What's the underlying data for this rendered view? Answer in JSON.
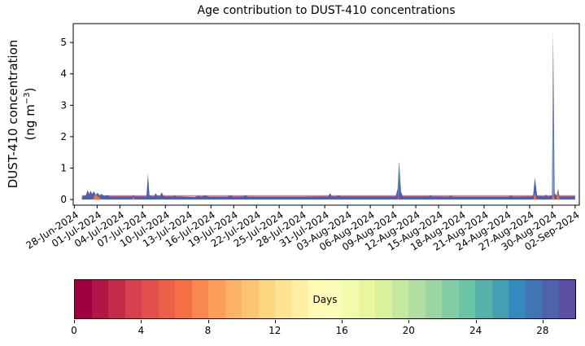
{
  "chart_data": {
    "type": "area",
    "title": "Age contribution to DUST-410 concentrations",
    "ylabel_line1": "DUST-410 concentration",
    "ylabel_line2_pre": "(ng m",
    "ylabel_line2_sup": "−3",
    "ylabel_line2_post": ")",
    "xlim_days": [
      -0.15,
      66.55
    ],
    "ylim": [
      -0.18,
      5.6
    ],
    "x_start_date": "28-Jun-2024",
    "x_tick_interval_days": 3,
    "x_tick_labels": [
      "28-Jun-2024",
      "01-Jul-2024",
      "04-Jul-2024",
      "07-Jul-2024",
      "10-Jul-2024",
      "13-Jul-2024",
      "16-Jul-2024",
      "19-Jul-2024",
      "22-Jul-2024",
      "25-Jul-2024",
      "28-Jul-2024",
      "31-Jul-2024",
      "03-Aug-2024",
      "06-Aug-2024",
      "09-Aug-2024",
      "12-Aug-2024",
      "15-Aug-2024",
      "18-Aug-2024",
      "21-Aug-2024",
      "24-Aug-2024",
      "27-Aug-2024",
      "30-Aug-2024",
      "02-Sep-2024"
    ],
    "y_ticks": [
      0,
      1,
      2,
      3,
      4,
      5
    ],
    "colors": {
      "envelope_blue": "#4d61aa",
      "baseline_pink": "#e07a9c",
      "core_orange": "#ef7044",
      "core_red": "#cc4455",
      "sliver_teal": "#5fae9f",
      "sliver_gray": "#9eb4bc",
      "axis": "#000000"
    },
    "baseline": {
      "start_day": 1.0,
      "end_day": 66.0,
      "pink_value": 0.115
    },
    "envelope_points": [
      [
        1.0,
        0.1
      ],
      [
        1.5,
        0.13
      ],
      [
        1.75,
        0.3
      ],
      [
        1.95,
        0.18
      ],
      [
        2.15,
        0.28
      ],
      [
        2.35,
        0.17
      ],
      [
        2.55,
        0.26
      ],
      [
        2.85,
        0.15
      ],
      [
        3.05,
        0.22
      ],
      [
        3.35,
        0.13
      ],
      [
        3.55,
        0.18
      ],
      [
        3.95,
        0.11
      ],
      [
        4.35,
        0.14
      ],
      [
        4.75,
        0.1
      ],
      [
        7.55,
        0.1
      ],
      [
        7.75,
        0.14
      ],
      [
        7.95,
        0.1
      ],
      [
        9.5,
        0.1
      ],
      [
        9.7,
        0.83
      ],
      [
        9.9,
        0.13
      ],
      [
        10.5,
        0.1
      ],
      [
        10.7,
        0.2
      ],
      [
        10.95,
        0.11
      ],
      [
        11.3,
        0.12
      ],
      [
        11.5,
        0.23
      ],
      [
        11.8,
        0.1
      ],
      [
        13.0,
        0.1
      ],
      [
        13.2,
        0.13
      ],
      [
        13.45,
        0.1
      ],
      [
        15.9,
        0.08
      ],
      [
        16.3,
        0.12
      ],
      [
        16.7,
        0.09
      ],
      [
        17.3,
        0.13
      ],
      [
        17.75,
        0.09
      ],
      [
        20.2,
        0.09
      ],
      [
        20.55,
        0.14
      ],
      [
        20.95,
        0.09
      ],
      [
        22.25,
        0.1
      ],
      [
        22.55,
        0.14
      ],
      [
        22.95,
        0.09
      ],
      [
        26.0,
        0.09
      ],
      [
        30.0,
        0.09
      ],
      [
        33.45,
        0.1
      ],
      [
        33.7,
        0.2
      ],
      [
        33.95,
        0.1
      ],
      [
        34.55,
        0.1
      ],
      [
        34.8,
        0.14
      ],
      [
        35.1,
        0.1
      ],
      [
        42.35,
        0.1
      ],
      [
        42.6,
        0.35
      ],
      [
        42.8,
        1.22
      ],
      [
        43.05,
        0.25
      ],
      [
        43.3,
        0.1
      ],
      [
        46.65,
        0.1
      ],
      [
        46.9,
        0.13
      ],
      [
        47.2,
        0.1
      ],
      [
        49.35,
        0.09
      ],
      [
        49.6,
        0.12
      ],
      [
        49.9,
        0.09
      ],
      [
        57.25,
        0.09
      ],
      [
        57.5,
        0.13
      ],
      [
        57.8,
        0.09
      ],
      [
        60.45,
        0.1
      ],
      [
        60.7,
        0.7
      ],
      [
        61.0,
        0.12
      ],
      [
        61.9,
        0.1
      ],
      [
        62.15,
        0.15
      ],
      [
        62.45,
        0.1
      ],
      [
        62.95,
        0.13
      ],
      [
        63.1,
        5.35
      ],
      [
        63.3,
        0.2
      ],
      [
        63.55,
        0.12
      ],
      [
        63.75,
        0.34
      ],
      [
        63.95,
        0.1
      ],
      [
        64.5,
        0.1
      ],
      [
        66.0,
        0.1
      ]
    ],
    "teal_slivers": [
      {
        "color_key": "sliver_teal",
        "points": [
          [
            42.66,
            0.1
          ],
          [
            42.76,
            1.1
          ],
          [
            42.82,
            0.6
          ],
          [
            42.74,
            0.1
          ]
        ]
      },
      {
        "color_key": "sliver_gray",
        "points": [
          [
            63.03,
            0.15
          ],
          [
            63.1,
            4.0
          ],
          [
            63.18,
            0.15
          ]
        ]
      }
    ],
    "orange_cores": [
      {
        "color_key": "core_orange",
        "points": [
          [
            2.45,
            0.0
          ],
          [
            2.75,
            0.17
          ],
          [
            3.6,
            0.0
          ]
        ]
      },
      {
        "color_key": "core_orange",
        "points": [
          [
            7.6,
            0.0
          ],
          [
            7.78,
            0.09
          ],
          [
            7.95,
            0.0
          ]
        ]
      },
      {
        "color_key": "core_orange",
        "points": [
          [
            42.55,
            0.0
          ],
          [
            42.66,
            0.08
          ],
          [
            42.76,
            0.0
          ]
        ]
      },
      {
        "color_key": "core_red",
        "points": [
          [
            42.7,
            0.0
          ],
          [
            42.78,
            0.2
          ],
          [
            42.86,
            0.0
          ]
        ]
      },
      {
        "color_key": "core_orange",
        "points": [
          [
            60.5,
            0.0
          ],
          [
            60.7,
            0.21
          ],
          [
            60.92,
            0.0
          ]
        ]
      },
      {
        "color_key": "core_orange",
        "points": [
          [
            62.95,
            0.0
          ],
          [
            63.1,
            0.27
          ],
          [
            63.28,
            0.0
          ]
        ]
      },
      {
        "color_key": "core_orange",
        "points": [
          [
            63.58,
            0.0
          ],
          [
            63.75,
            0.3
          ],
          [
            63.93,
            0.0
          ]
        ]
      }
    ],
    "peak_values": {
      "max_peak": 5.35,
      "notable_peaks": [
        {
          "day_label": "30-Jun to 02-Jul",
          "value": 0.3
        },
        {
          "day_label": "08-Jul",
          "value": 0.83
        },
        {
          "day_label": "01-Aug",
          "value": 0.2
        },
        {
          "day_label": "10-Aug",
          "value": 1.22
        },
        {
          "day_label": "27-Aug",
          "value": 0.7
        },
        {
          "day_label": "30-Aug",
          "value": 5.35
        }
      ]
    },
    "colorbar": {
      "label": "Days",
      "vmin": 0,
      "vmax": 30,
      "ticks": [
        0,
        4,
        8,
        12,
        16,
        20,
        24,
        28
      ],
      "segment_colors": [
        "#9e0142",
        "#b11646",
        "#c42b4b",
        "#d6404f",
        "#e1504b",
        "#eb6046",
        "#f57145",
        "#f8884f",
        "#fb9e5a",
        "#fdb365",
        "#fdc474",
        "#fed682",
        "#fee492",
        "#feefa4",
        "#fffab6",
        "#fbfdb8",
        "#f2faab",
        "#e9f69d",
        "#daf09a",
        "#c5e89f",
        "#b1dfa3",
        "#9ad6a4",
        "#82cda5",
        "#6ac4a5",
        "#58b2ac",
        "#469eb4",
        "#348abc",
        "#4076b5",
        "#4f63ab",
        "#5e4fa2"
      ]
    }
  }
}
